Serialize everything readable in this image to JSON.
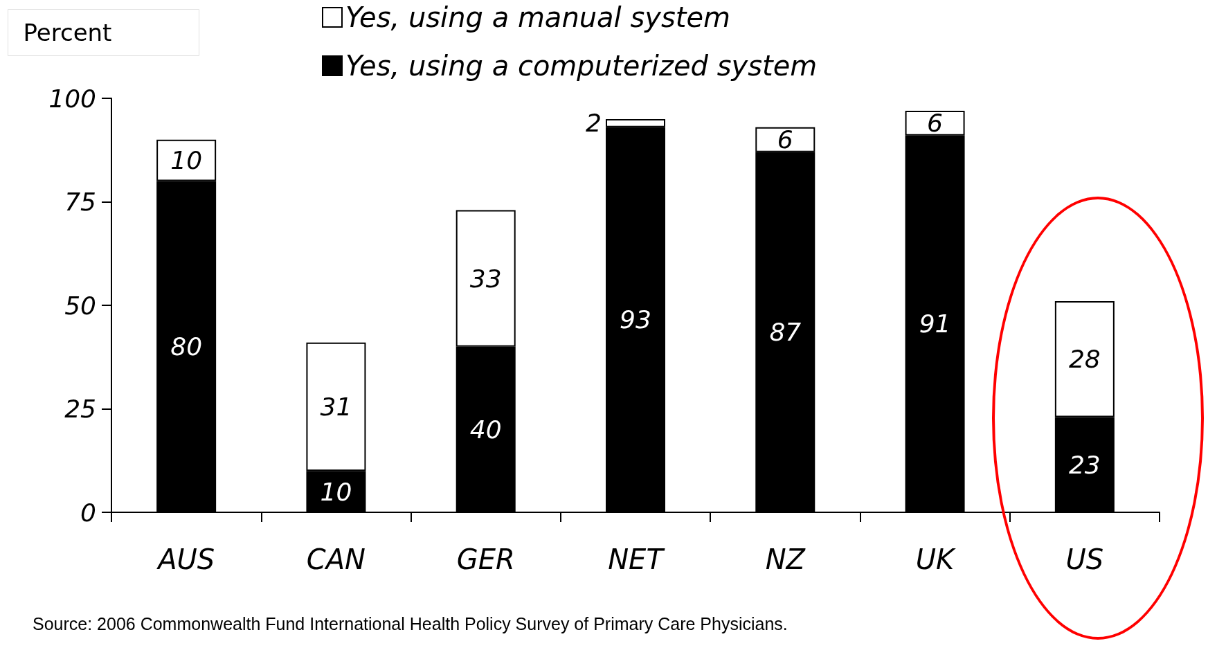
{
  "chart_data": {
    "type": "bar",
    "stacked": true,
    "ylabel": "Percent",
    "categories": [
      "AUS",
      "CAN",
      "GER",
      "NET",
      "NZ",
      "UK",
      "US"
    ],
    "series": [
      {
        "name": "Yes, using a computerized system",
        "color": "#000000",
        "values": [
          80,
          10,
          40,
          93,
          87,
          91,
          23
        ]
      },
      {
        "name": "Yes, using a manual system",
        "color": "#ffffff",
        "values": [
          10,
          31,
          33,
          2,
          6,
          6,
          28
        ]
      }
    ],
    "ylim": [
      0,
      100
    ],
    "yticks": [
      0,
      25,
      50,
      75,
      100
    ],
    "grid": false,
    "legend": "top",
    "data_labels": true,
    "annotations": [
      "Source: 2006 Commonwealth Fund International Health Policy Survey of Primary Care Physicians."
    ]
  }
}
